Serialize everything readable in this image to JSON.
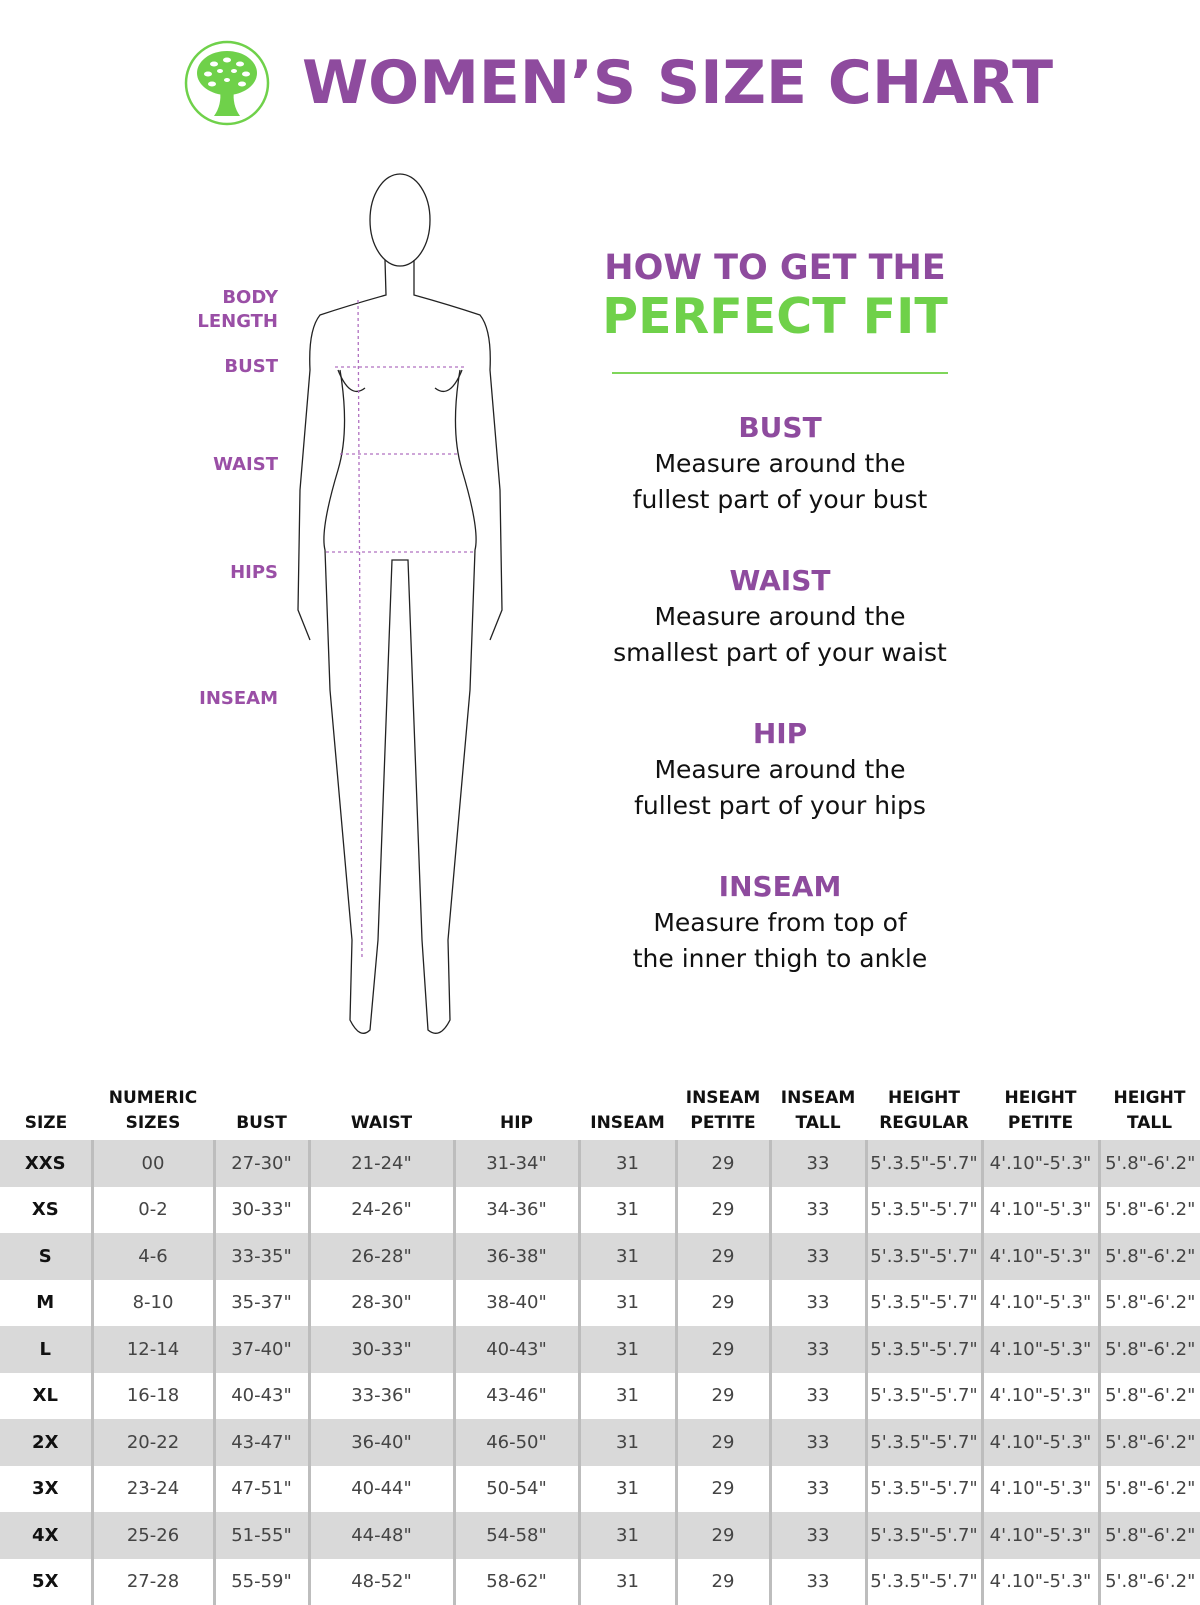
{
  "header": {
    "title": "WOMEN’S SIZE CHART",
    "logo_icon": "tree-icon",
    "brand_color": "#8e4b9e",
    "accent_color": "#6fd14a"
  },
  "figure": {
    "labels": [
      "BODY LENGTH",
      "BUST",
      "WAIST",
      "HIPS",
      "INSEAM"
    ]
  },
  "guide": {
    "heading_line1": "HOW TO GET THE",
    "heading_line2": "PERFECT FIT",
    "sections": [
      {
        "title": "BUST",
        "line1": "Measure around the",
        "line2": "fullest part of your bust"
      },
      {
        "title": "WAIST",
        "line1": "Measure around the",
        "line2": "smallest part of your waist"
      },
      {
        "title": "HIP",
        "line1": "Measure around the",
        "line2": "fullest part of your hips"
      },
      {
        "title": "INSEAM",
        "line1": "Measure from top of",
        "line2": "the inner thigh to ankle"
      }
    ]
  },
  "table": {
    "headers": [
      [
        "SIZE",
        ""
      ],
      [
        "NUMERIC",
        "SIZES"
      ],
      [
        "BUST",
        ""
      ],
      [
        "WAIST",
        ""
      ],
      [
        "HIP",
        ""
      ],
      [
        "INSEAM",
        ""
      ],
      [
        "INSEAM",
        "PETITE"
      ],
      [
        "INSEAM",
        "TALL"
      ],
      [
        "HEIGHT",
        "REGULAR"
      ],
      [
        "HEIGHT",
        "PETITE"
      ],
      [
        "HEIGHT",
        "TALL"
      ]
    ],
    "rows": [
      [
        "XXS",
        "00",
        "27-30\"",
        "21-24\"",
        "31-34\"",
        "31",
        "29",
        "33",
        "5'.3.5\"-5'.7\"",
        "4'.10\"-5'.3\"",
        "5'.8\"-6'.2\""
      ],
      [
        "XS",
        "0-2",
        "30-33\"",
        "24-26\"",
        "34-36\"",
        "31",
        "29",
        "33",
        "5'.3.5\"-5'.7\"",
        "4'.10\"-5'.3\"",
        "5'.8\"-6'.2\""
      ],
      [
        "S",
        "4-6",
        "33-35\"",
        "26-28\"",
        "36-38\"",
        "31",
        "29",
        "33",
        "5'.3.5\"-5'.7\"",
        "4'.10\"-5'.3\"",
        "5'.8\"-6'.2\""
      ],
      [
        "M",
        "8-10",
        "35-37\"",
        "28-30\"",
        "38-40\"",
        "31",
        "29",
        "33",
        "5'.3.5\"-5'.7\"",
        "4'.10\"-5'.3\"",
        "5'.8\"-6'.2\""
      ],
      [
        "L",
        "12-14",
        "37-40\"",
        "30-33\"",
        "40-43\"",
        "31",
        "29",
        "33",
        "5'.3.5\"-5'.7\"",
        "4'.10\"-5'.3\"",
        "5'.8\"-6'.2\""
      ],
      [
        "XL",
        "16-18",
        "40-43\"",
        "33-36\"",
        "43-46\"",
        "31",
        "29",
        "33",
        "5'.3.5\"-5'.7\"",
        "4'.10\"-5'.3\"",
        "5'.8\"-6'.2\""
      ],
      [
        "2X",
        "20-22",
        "43-47\"",
        "36-40\"",
        "46-50\"",
        "31",
        "29",
        "33",
        "5'.3.5\"-5'.7\"",
        "4'.10\"-5'.3\"",
        "5'.8\"-6'.2\""
      ],
      [
        "3X",
        "23-24",
        "47-51\"",
        "40-44\"",
        "50-54\"",
        "31",
        "29",
        "33",
        "5'.3.5\"-5'.7\"",
        "4'.10\"-5'.3\"",
        "5'.8\"-6'.2\""
      ],
      [
        "4X",
        "25-26",
        "51-55\"",
        "44-48\"",
        "54-58\"",
        "31",
        "29",
        "33",
        "5'.3.5\"-5'.7\"",
        "4'.10\"-5'.3\"",
        "5'.8\"-6'.2\""
      ],
      [
        "5X",
        "27-28",
        "55-59\"",
        "48-52\"",
        "58-62\"",
        "31",
        "29",
        "33",
        "5'.3.5\"-5'.7\"",
        "4'.10\"-5'.3\"",
        "5'.8\"-6'.2\""
      ]
    ]
  }
}
